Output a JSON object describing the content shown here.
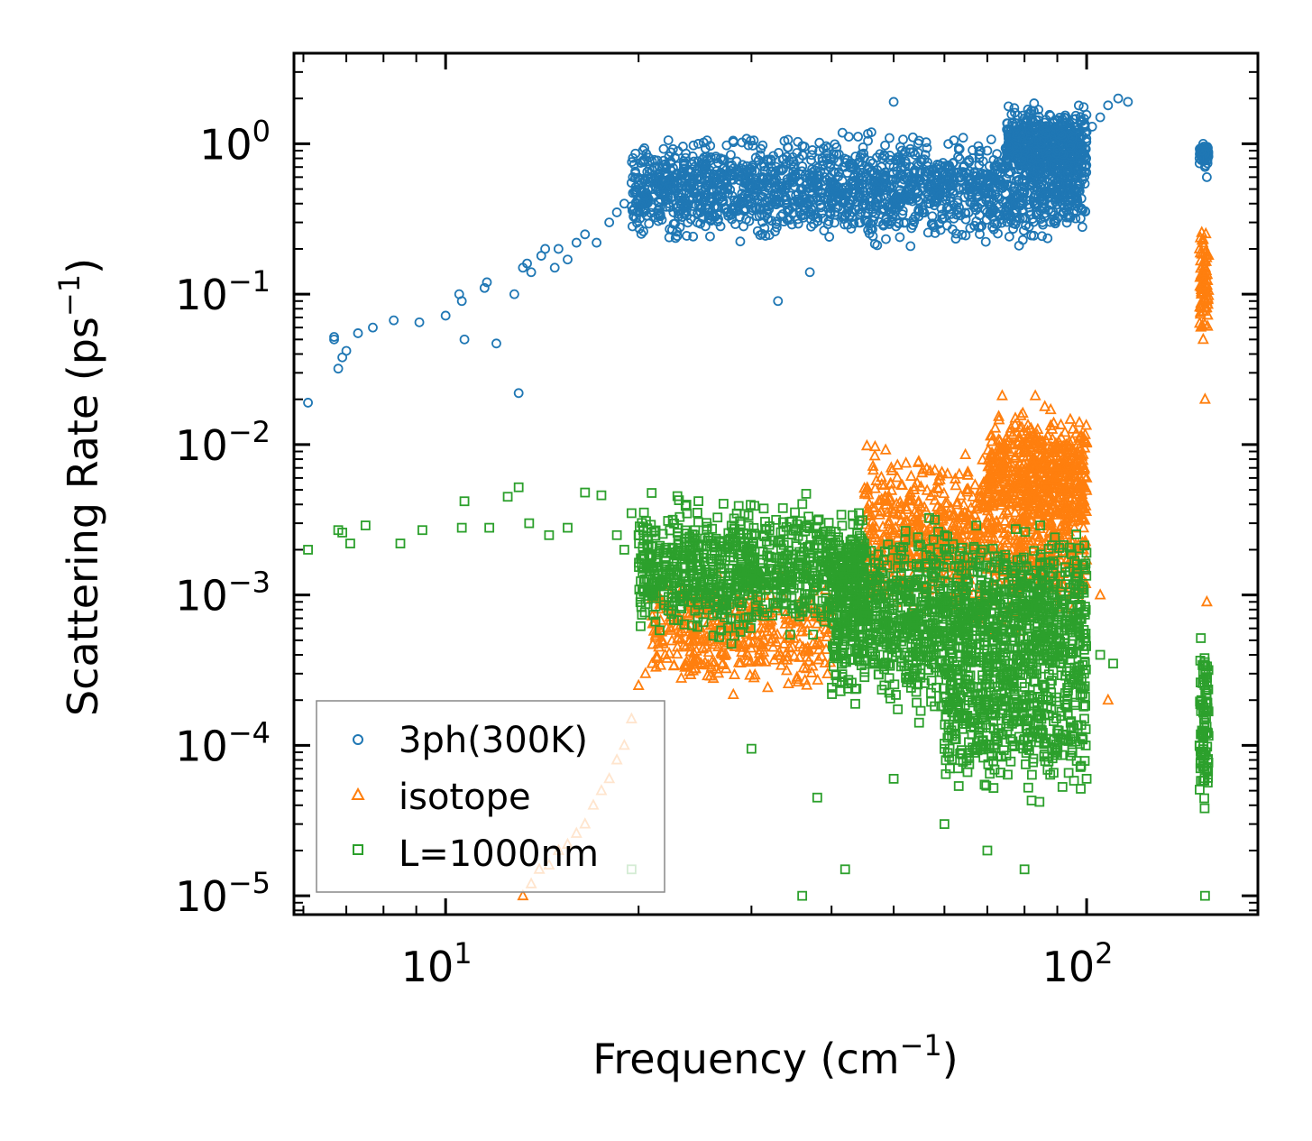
{
  "chart_data": {
    "type": "scatter",
    "xscale": "log",
    "yscale": "log",
    "xlim": [
      5.8,
      185
    ],
    "ylim": [
      7.5e-06,
      4.0
    ],
    "xlabel": "Frequency (cm",
    "xlabel_sup": "−1",
    "xlabel_end": ")",
    "ylabel": "Scattering Rate (ps",
    "ylabel_sup": "−1",
    "ylabel_end": ")",
    "x_tick_labels": [
      {
        "value": 10,
        "base": "10",
        "exp": "1"
      },
      {
        "value": 100,
        "base": "10",
        "exp": "2"
      }
    ],
    "y_tick_labels": [
      {
        "value": 1,
        "base": "10",
        "exp": "0"
      },
      {
        "value": 0.1,
        "base": "10",
        "exp": "−1"
      },
      {
        "value": 0.01,
        "base": "10",
        "exp": "−2"
      },
      {
        "value": 0.001,
        "base": "10",
        "exp": "−3"
      },
      {
        "value": 0.0001,
        "base": "10",
        "exp": "−4"
      },
      {
        "value": 1e-05,
        "base": "10",
        "exp": "−5"
      }
    ],
    "legend_position": "lower-left",
    "series": [
      {
        "name": "3ph(300K)",
        "marker": "circle",
        "color": "#1f77b4",
        "x": [
          6.1,
          6.7,
          6.7,
          6.8,
          6.9,
          7.0,
          7.3,
          7.7,
          8.3,
          9.1,
          10.0,
          10.5,
          10.6,
          10.7,
          11.5,
          11.6,
          12.0,
          12.8,
          13.0,
          13.2,
          13.4,
          13.6,
          14.1,
          14.3,
          14.8,
          15.0,
          15.5,
          16.0,
          16.5,
          17.2,
          18.0,
          18.5,
          19.0,
          19.5,
          20.5,
          21.0,
          22.0,
          23.0,
          24.0,
          25.0,
          26.0,
          27.0,
          28.0,
          29.0,
          30.0,
          32.0,
          33.0,
          35.0,
          37.0,
          39.0,
          40.0,
          42.0,
          44.0,
          46.0,
          48.0,
          50.0,
          52.0,
          55.0,
          58.0,
          60.0,
          62.0,
          65.0,
          68.0,
          70.0,
          72.0,
          75.0,
          78.0,
          80.0,
          82.0,
          85.0,
          88.0,
          90.0,
          92.0,
          95.0,
          98.0,
          100.0,
          102.0,
          105.0,
          108.0,
          112.0,
          116.0,
          150.0,
          151.0,
          152.0,
          153.0,
          154.0,
          50.0,
          33.0,
          37.0
        ],
        "y": [
          0.019,
          0.05,
          0.052,
          0.032,
          0.038,
          0.042,
          0.055,
          0.06,
          0.067,
          0.065,
          0.072,
          0.1,
          0.09,
          0.05,
          0.11,
          0.12,
          0.047,
          0.1,
          0.022,
          0.15,
          0.16,
          0.14,
          0.18,
          0.2,
          0.15,
          0.2,
          0.17,
          0.22,
          0.25,
          0.22,
          0.3,
          0.35,
          0.4,
          0.55,
          0.45,
          0.5,
          0.45,
          0.55,
          0.6,
          0.35,
          0.5,
          0.6,
          0.45,
          0.4,
          0.65,
          0.55,
          0.45,
          0.7,
          0.6,
          0.6,
          0.55,
          0.7,
          0.75,
          0.65,
          0.8,
          0.7,
          0.6,
          0.65,
          0.55,
          0.7,
          0.75,
          0.6,
          0.8,
          0.9,
          0.7,
          0.75,
          0.85,
          0.9,
          0.8,
          1.0,
          1.0,
          0.9,
          0.85,
          1.1,
          1.0,
          1.2,
          1.3,
          1.5,
          1.8,
          2.0,
          1.9,
          0.8,
          0.9,
          1.0,
          0.7,
          0.6,
          1.9,
          0.09,
          0.14
        ],
        "clusters": [
          {
            "xmin": 19.5,
            "xmax": 100,
            "ymid": 0.5,
            "spread": 1.4,
            "n": 1800
          },
          {
            "xmin": 75,
            "xmax": 100,
            "ymid": 1.0,
            "spread": 1.0,
            "n": 500
          },
          {
            "xmin": 150,
            "xmax": 155,
            "ymid": 0.85,
            "spread": 0.3,
            "n": 60
          }
        ]
      },
      {
        "name": "isotope",
        "marker": "triangle",
        "color": "#ff7f0e",
        "x": [
          13.2,
          13.6,
          14.0,
          14.5,
          15.0,
          15.5,
          16.0,
          16.5,
          17.0,
          17.5,
          18.0,
          18.5,
          19.0,
          19.5,
          20.0,
          20.5,
          21.0,
          22.0,
          23.0,
          24.0,
          25.0,
          26.0,
          27.0,
          28.0,
          30.0,
          32.0,
          34.0,
          36.0,
          40.0,
          45.0,
          50.0,
          55.0,
          60.0,
          65.0,
          70.0,
          75.0,
          80.0,
          85.0,
          90.0,
          95.0,
          100.0,
          105.0,
          108.0,
          150.0,
          151.0,
          152.0,
          153.0,
          154.0
        ],
        "y": [
          1e-05,
          1.2e-05,
          1.5e-05,
          1.6e-05,
          2e-05,
          2.2e-05,
          2.6e-05,
          3e-05,
          4e-05,
          5e-05,
          6e-05,
          8e-05,
          0.0001,
          0.00015,
          0.00025,
          0.0003,
          0.00035,
          0.0004,
          0.00045,
          0.0005,
          0.0006,
          0.00055,
          0.00065,
          0.0006,
          0.00055,
          0.00065,
          0.0007,
          0.00075,
          0.0009,
          0.0013,
          0.0018,
          0.0025,
          0.0035,
          0.005,
          0.006,
          0.008,
          0.009,
          0.0085,
          0.01,
          0.008,
          0.006,
          0.001,
          0.0002,
          0.2,
          0.1,
          0.05,
          0.02,
          0.0009
        ],
        "clusters": [
          {
            "xmin": 21,
            "xmax": 40,
            "ymid": 0.00055,
            "spread": 1.6,
            "n": 400
          },
          {
            "xmin": 45,
            "xmax": 100,
            "ymid": 0.0025,
            "spread": 2.2,
            "n": 900
          },
          {
            "xmin": 70,
            "xmax": 100,
            "ymid": 0.007,
            "spread": 1.6,
            "n": 500
          },
          {
            "xmin": 150,
            "xmax": 155,
            "ymid": 0.12,
            "spread": 1.5,
            "n": 80
          }
        ]
      },
      {
        "name": "L=1000nm",
        "marker": "square",
        "color": "#2ca02c",
        "x": [
          6.1,
          6.8,
          6.9,
          7.1,
          7.5,
          8.5,
          9.2,
          10.6,
          10.7,
          11.7,
          12.5,
          13.0,
          13.5,
          14.5,
          15.5,
          16.5,
          17.5,
          18.5,
          19.0,
          19.5,
          20.0,
          21.0,
          22.0,
          24.0,
          26.0,
          28.0,
          30.0,
          32.0,
          34.0,
          36.0,
          38.0,
          40.0,
          45.0,
          50.0,
          55.0,
          60.0,
          65.0,
          70.0,
          75.0,
          80.0,
          85.0,
          90.0,
          95.0,
          100.0,
          105.0,
          110.0,
          30.0,
          36.0,
          38.0,
          42.0,
          50.0,
          60.0,
          70.0,
          80.0,
          150.0,
          151.0,
          152.0,
          153.0,
          19.5
        ],
        "y": [
          0.002,
          0.0027,
          0.0026,
          0.0022,
          0.0029,
          0.0022,
          0.0027,
          0.0028,
          0.0042,
          0.0028,
          0.0045,
          0.0052,
          0.003,
          0.0025,
          0.0028,
          0.0048,
          0.0046,
          0.0025,
          0.002,
          0.0035,
          0.0025,
          0.0015,
          0.002,
          0.0018,
          0.0022,
          0.0015,
          0.0012,
          0.0018,
          0.001,
          0.0015,
          0.0012,
          0.0009,
          0.0008,
          0.0007,
          0.0006,
          0.0005,
          0.0004,
          0.0003,
          0.00025,
          0.0002,
          0.00015,
          0.00012,
          9e-05,
          6e-05,
          0.0004,
          0.00035,
          9.5e-05,
          1e-05,
          4.5e-05,
          1.5e-05,
          6e-05,
          3e-05,
          2e-05,
          1.5e-05,
          0.0001,
          0.0002,
          0.0003,
          1e-05,
          1.5e-05
        ],
        "clusters": [
          {
            "xmin": 20,
            "xmax": 45,
            "ymid": 0.0015,
            "spread": 1.8,
            "n": 900
          },
          {
            "xmin": 40,
            "xmax": 100,
            "ymid": 0.0007,
            "spread": 2.4,
            "n": 1400
          },
          {
            "xmin": 60,
            "xmax": 100,
            "ymid": 0.00015,
            "spread": 2.0,
            "n": 400
          },
          {
            "xmin": 150,
            "xmax": 155,
            "ymid": 0.00015,
            "spread": 2.5,
            "n": 90
          }
        ]
      }
    ]
  }
}
